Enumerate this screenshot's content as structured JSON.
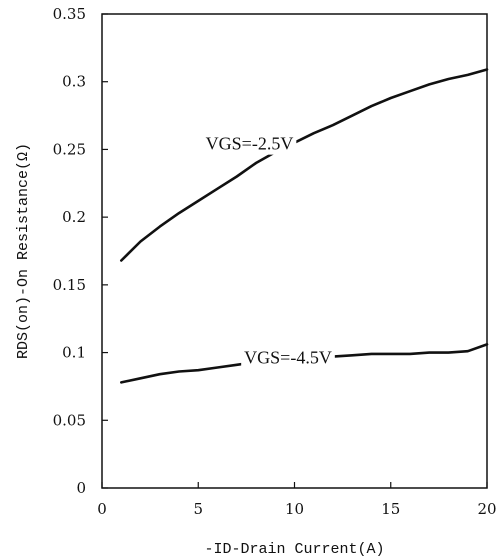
{
  "chart_data": {
    "type": "line",
    "xlabel": "-ID-Drain Current(A)",
    "ylabel": "RDS(on)-On Resistance(Ω)",
    "xlim": [
      0,
      20
    ],
    "ylim": [
      0,
      0.35
    ],
    "x_ticks": [
      "0",
      "5",
      "10",
      "15",
      "20"
    ],
    "y_ticks": [
      "0",
      "0.05",
      "0.1",
      "0.15",
      "0.2",
      "0.25",
      "0.3",
      "0.35"
    ],
    "grid": false,
    "series": [
      {
        "name": "VGS=-2.5V",
        "x": [
          1,
          2,
          3,
          4,
          5,
          6,
          7,
          8,
          9,
          10,
          11,
          12,
          13,
          14,
          15,
          16,
          17,
          18,
          19,
          20
        ],
        "y": [
          0.168,
          0.182,
          0.193,
          0.203,
          0.212,
          0.221,
          0.23,
          0.24,
          0.248,
          0.255,
          0.262,
          0.268,
          0.275,
          0.282,
          0.288,
          0.293,
          0.298,
          0.302,
          0.305,
          0.309
        ]
      },
      {
        "name": "VGS=-4.5V",
        "x": [
          1,
          2,
          3,
          4,
          5,
          6,
          7,
          8,
          9,
          10,
          11,
          12,
          13,
          14,
          15,
          16,
          17,
          18,
          19,
          20
        ],
        "y": [
          0.078,
          0.081,
          0.084,
          0.086,
          0.087,
          0.089,
          0.091,
          0.093,
          0.095,
          0.096,
          0.097,
          0.097,
          0.098,
          0.099,
          0.099,
          0.099,
          0.1,
          0.1,
          0.101,
          0.106
        ]
      }
    ]
  }
}
